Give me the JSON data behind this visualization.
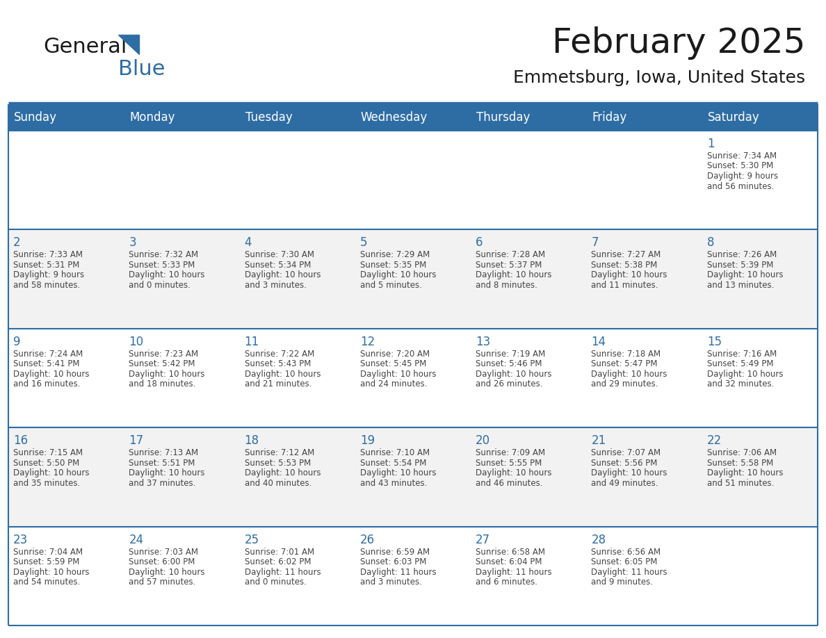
{
  "title": "February 2025",
  "subtitle": "Emmetsburg, Iowa, United States",
  "header_color": "#2E6DA4",
  "header_text_color": "#FFFFFF",
  "border_color": "#2E6DA4",
  "day_number_color": "#2E6DA4",
  "cell_text_color": "#444444",
  "days_of_week": [
    "Sunday",
    "Monday",
    "Tuesday",
    "Wednesday",
    "Thursday",
    "Friday",
    "Saturday"
  ],
  "weeks": [
    [
      {
        "day": "",
        "sunrise": "",
        "sunset": "",
        "daylight": ""
      },
      {
        "day": "",
        "sunrise": "",
        "sunset": "",
        "daylight": ""
      },
      {
        "day": "",
        "sunrise": "",
        "sunset": "",
        "daylight": ""
      },
      {
        "day": "",
        "sunrise": "",
        "sunset": "",
        "daylight": ""
      },
      {
        "day": "",
        "sunrise": "",
        "sunset": "",
        "daylight": ""
      },
      {
        "day": "",
        "sunrise": "",
        "sunset": "",
        "daylight": ""
      },
      {
        "day": "1",
        "sunrise": "7:34 AM",
        "sunset": "5:30 PM",
        "daylight": "9 hours\nand 56 minutes."
      }
    ],
    [
      {
        "day": "2",
        "sunrise": "7:33 AM",
        "sunset": "5:31 PM",
        "daylight": "9 hours\nand 58 minutes."
      },
      {
        "day": "3",
        "sunrise": "7:32 AM",
        "sunset": "5:33 PM",
        "daylight": "10 hours\nand 0 minutes."
      },
      {
        "day": "4",
        "sunrise": "7:30 AM",
        "sunset": "5:34 PM",
        "daylight": "10 hours\nand 3 minutes."
      },
      {
        "day": "5",
        "sunrise": "7:29 AM",
        "sunset": "5:35 PM",
        "daylight": "10 hours\nand 5 minutes."
      },
      {
        "day": "6",
        "sunrise": "7:28 AM",
        "sunset": "5:37 PM",
        "daylight": "10 hours\nand 8 minutes."
      },
      {
        "day": "7",
        "sunrise": "7:27 AM",
        "sunset": "5:38 PM",
        "daylight": "10 hours\nand 11 minutes."
      },
      {
        "day": "8",
        "sunrise": "7:26 AM",
        "sunset": "5:39 PM",
        "daylight": "10 hours\nand 13 minutes."
      }
    ],
    [
      {
        "day": "9",
        "sunrise": "7:24 AM",
        "sunset": "5:41 PM",
        "daylight": "10 hours\nand 16 minutes."
      },
      {
        "day": "10",
        "sunrise": "7:23 AM",
        "sunset": "5:42 PM",
        "daylight": "10 hours\nand 18 minutes."
      },
      {
        "day": "11",
        "sunrise": "7:22 AM",
        "sunset": "5:43 PM",
        "daylight": "10 hours\nand 21 minutes."
      },
      {
        "day": "12",
        "sunrise": "7:20 AM",
        "sunset": "5:45 PM",
        "daylight": "10 hours\nand 24 minutes."
      },
      {
        "day": "13",
        "sunrise": "7:19 AM",
        "sunset": "5:46 PM",
        "daylight": "10 hours\nand 26 minutes."
      },
      {
        "day": "14",
        "sunrise": "7:18 AM",
        "sunset": "5:47 PM",
        "daylight": "10 hours\nand 29 minutes."
      },
      {
        "day": "15",
        "sunrise": "7:16 AM",
        "sunset": "5:49 PM",
        "daylight": "10 hours\nand 32 minutes."
      }
    ],
    [
      {
        "day": "16",
        "sunrise": "7:15 AM",
        "sunset": "5:50 PM",
        "daylight": "10 hours\nand 35 minutes."
      },
      {
        "day": "17",
        "sunrise": "7:13 AM",
        "sunset": "5:51 PM",
        "daylight": "10 hours\nand 37 minutes."
      },
      {
        "day": "18",
        "sunrise": "7:12 AM",
        "sunset": "5:53 PM",
        "daylight": "10 hours\nand 40 minutes."
      },
      {
        "day": "19",
        "sunrise": "7:10 AM",
        "sunset": "5:54 PM",
        "daylight": "10 hours\nand 43 minutes."
      },
      {
        "day": "20",
        "sunrise": "7:09 AM",
        "sunset": "5:55 PM",
        "daylight": "10 hours\nand 46 minutes."
      },
      {
        "day": "21",
        "sunrise": "7:07 AM",
        "sunset": "5:56 PM",
        "daylight": "10 hours\nand 49 minutes."
      },
      {
        "day": "22",
        "sunrise": "7:06 AM",
        "sunset": "5:58 PM",
        "daylight": "10 hours\nand 51 minutes."
      }
    ],
    [
      {
        "day": "23",
        "sunrise": "7:04 AM",
        "sunset": "5:59 PM",
        "daylight": "10 hours\nand 54 minutes."
      },
      {
        "day": "24",
        "sunrise": "7:03 AM",
        "sunset": "6:00 PM",
        "daylight": "10 hours\nand 57 minutes."
      },
      {
        "day": "25",
        "sunrise": "7:01 AM",
        "sunset": "6:02 PM",
        "daylight": "11 hours\nand 0 minutes."
      },
      {
        "day": "26",
        "sunrise": "6:59 AM",
        "sunset": "6:03 PM",
        "daylight": "11 hours\nand 3 minutes."
      },
      {
        "day": "27",
        "sunrise": "6:58 AM",
        "sunset": "6:04 PM",
        "daylight": "11 hours\nand 6 minutes."
      },
      {
        "day": "28",
        "sunrise": "6:56 AM",
        "sunset": "6:05 PM",
        "daylight": "11 hours\nand 9 minutes."
      },
      {
        "day": "",
        "sunrise": "",
        "sunset": "",
        "daylight": ""
      }
    ]
  ],
  "logo_text1": "General",
  "logo_text2": "Blue",
  "logo_color1": "#1a1a1a",
  "logo_color2": "#2E6DA4",
  "logo_triangle_color": "#2E6DA4",
  "title_fontsize": 36,
  "subtitle_fontsize": 18,
  "header_fontsize": 12,
  "day_num_fontsize": 12,
  "cell_fontsize": 8.5
}
